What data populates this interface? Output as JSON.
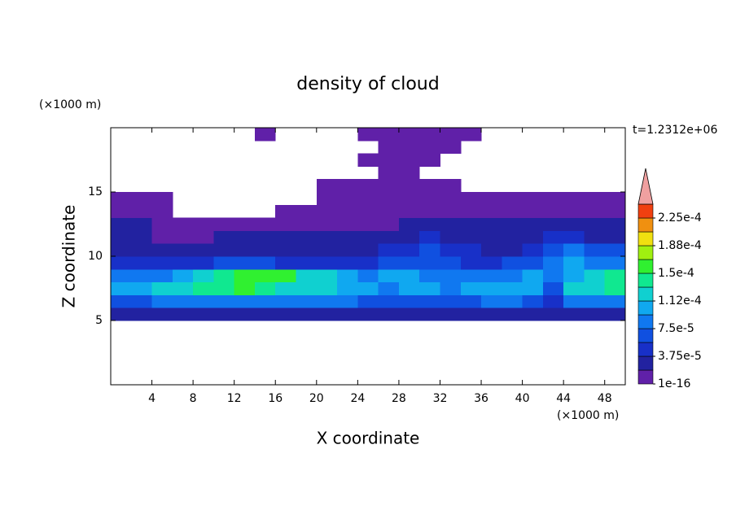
{
  "chart_data": {
    "type": "contour",
    "title": "density of cloud",
    "xlabel": "X coordinate",
    "ylabel": "Z coordinate",
    "xunit": "(×1000 m)",
    "yunit": "(×1000 m)",
    "annotation": "t=1.2312e+06",
    "xlim": [
      0,
      50
    ],
    "ylim": [
      0,
      20
    ],
    "xticks": [
      4,
      8,
      12,
      16,
      20,
      24,
      28,
      32,
      36,
      40,
      44,
      48
    ],
    "yticks": [
      5,
      10,
      15
    ],
    "x": [
      1,
      3,
      5,
      7,
      9,
      11,
      13,
      15,
      17,
      19,
      21,
      23,
      25,
      27,
      29,
      31,
      33,
      35,
      37,
      39,
      41,
      43,
      45,
      47,
      49
    ],
    "y": [
      5.5,
      6.5,
      7.5,
      8.5,
      9.5,
      10.5,
      11.5,
      12.5,
      13.5,
      14.5,
      15.5,
      16.5,
      17.5,
      18.5,
      19.5
    ],
    "values": [
      [
        2.5e-05,
        2.5e-05,
        2.5e-05,
        2.5e-05,
        2.5e-05,
        2.5e-05,
        2.5e-05,
        2.5e-05,
        2.5e-05,
        2.5e-05,
        2.5e-05,
        2.5e-05,
        2.5e-05,
        2.5e-05,
        2.5e-05,
        2.5e-05,
        2.5e-05,
        2.5e-05,
        2.5e-05,
        2.5e-05,
        2.5e-05,
        2.5e-05,
        2.5e-05,
        2.5e-05,
        2.5e-05
      ],
      [
        6e-05,
        7e-05,
        8e-05,
        8e-05,
        8e-05,
        9e-05,
        9e-05,
        9e-05,
        9e-05,
        8e-05,
        8e-05,
        8e-05,
        7e-05,
        6e-05,
        7e-05,
        7e-05,
        6e-05,
        7e-05,
        8e-05,
        8e-05,
        7e-05,
        5e-05,
        8e-05,
        8e-05,
        8e-05
      ],
      [
        0.0001,
        0.00011,
        0.00012,
        0.00013,
        0.00014,
        0.000145,
        0.00015,
        0.00014,
        0.00013,
        0.00012,
        0.00012,
        0.00011,
        0.0001,
        9e-05,
        0.0001,
        0.0001,
        9e-05,
        0.0001,
        0.000105,
        0.00011,
        0.00011,
        7e-05,
        0.00012,
        0.00013,
        0.000135
      ],
      [
        8e-05,
        9e-05,
        9e-05,
        0.0001,
        0.00012,
        0.000145,
        0.00016,
        0.000165,
        0.00015,
        0.00013,
        0.00012,
        0.00011,
        9e-05,
        0.0001,
        0.00011,
        9e-05,
        8e-05,
        8e-05,
        8e-05,
        9e-05,
        0.0001,
        8e-05,
        0.00011,
        0.00013,
        0.00014
      ],
      [
        5e-05,
        5e-05,
        4e-05,
        4e-05,
        5e-05,
        6e-05,
        7e-05,
        6e-05,
        5e-05,
        5e-05,
        5e-05,
        5e-05,
        5e-05,
        6e-05,
        7e-05,
        7e-05,
        6e-05,
        5e-05,
        5e-05,
        6e-05,
        7e-05,
        9e-05,
        0.0001,
        9e-05,
        8e-05
      ],
      [
        3e-05,
        3e-05,
        3e-05,
        2.5e-05,
        2.5e-05,
        3e-05,
        3e-05,
        3e-05,
        3e-05,
        3e-05,
        3e-05,
        3e-05,
        3e-05,
        4e-05,
        5e-05,
        6e-05,
        5e-05,
        4e-05,
        3e-05,
        3e-05,
        4e-05,
        7e-05,
        8e-05,
        7e-05,
        6e-05
      ],
      [
        2e-05,
        2e-05,
        1e-05,
        1e-05,
        1e-05,
        2e-05,
        2e-05,
        2e-05,
        2e-05,
        2e-05,
        2e-05,
        2e-05,
        2e-05,
        2.5e-05,
        3e-05,
        4e-05,
        3e-05,
        2e-05,
        2e-05,
        2e-05,
        2.5e-05,
        4e-05,
        4e-05,
        3e-05,
        3e-05
      ],
      [
        2e-05,
        2e-05,
        1e-05,
        1e-05,
        1e-05,
        1e-05,
        1e-05,
        1e-05,
        1e-05,
        1e-05,
        1e-05,
        1e-05,
        1e-05,
        1e-05,
        2e-05,
        2e-05,
        2e-05,
        2e-05,
        2e-05,
        2e-05,
        2e-05,
        2e-05,
        2e-05,
        2e-05,
        2e-05
      ],
      [
        1e-05,
        1e-05,
        1e-05,
        null,
        null,
        null,
        null,
        null,
        1e-05,
        1e-05,
        1e-05,
        1e-05,
        1e-05,
        1e-05,
        1e-05,
        1e-05,
        1e-05,
        1e-05,
        1e-05,
        1e-05,
        1e-05,
        1e-05,
        1e-05,
        1e-05,
        1e-05
      ],
      [
        1e-05,
        1e-05,
        1e-05,
        null,
        null,
        null,
        null,
        null,
        null,
        null,
        1e-05,
        1e-05,
        1e-05,
        1e-05,
        1e-05,
        1e-05,
        1e-05,
        1e-05,
        1e-05,
        1e-05,
        1e-05,
        1e-05,
        1e-05,
        1e-05,
        1e-05
      ],
      [
        null,
        null,
        null,
        null,
        null,
        null,
        null,
        null,
        null,
        null,
        1e-05,
        1e-05,
        1e-05,
        1e-05,
        1e-05,
        1e-05,
        1e-05,
        null,
        null,
        null,
        null,
        null,
        null,
        null,
        null
      ],
      [
        null,
        null,
        null,
        null,
        null,
        null,
        null,
        null,
        null,
        null,
        null,
        null,
        null,
        1e-05,
        1e-05,
        null,
        null,
        null,
        null,
        null,
        null,
        null,
        null,
        null,
        null
      ],
      [
        null,
        null,
        null,
        null,
        null,
        null,
        null,
        null,
        null,
        null,
        null,
        null,
        1e-05,
        1e-05,
        1e-05,
        1e-05,
        null,
        null,
        null,
        null,
        null,
        null,
        null,
        null,
        null
      ],
      [
        null,
        null,
        null,
        null,
        null,
        null,
        null,
        null,
        null,
        null,
        null,
        null,
        null,
        1e-05,
        1e-05,
        1e-05,
        1e-05,
        null,
        null,
        null,
        null,
        null,
        null,
        null,
        null
      ],
      [
        null,
        null,
        null,
        null,
        null,
        null,
        null,
        1e-05,
        null,
        null,
        null,
        null,
        1e-05,
        1e-05,
        1e-05,
        1e-05,
        1e-05,
        1e-05,
        null,
        null,
        null,
        null,
        null,
        null,
        null
      ]
    ],
    "levels": [
      1e-16,
      1.875e-05,
      3.75e-05,
      5.625e-05,
      7.5e-05,
      9.375e-05,
      0.0001125,
      0.00013125,
      0.00015,
      0.00016875,
      0.0001875,
      0.00020625,
      0.000225,
      0.00024375
    ],
    "colors": [
      "#6020a8",
      "#2222a0",
      "#1830c8",
      "#1050e0",
      "#1078f0",
      "#10a8f0",
      "#10d0d0",
      "#10e890",
      "#30f030",
      "#a0f010",
      "#f0e010",
      "#f09010",
      "#f04010"
    ],
    "extend_color": "#f0a0a0",
    "cbar_ticks": [
      {
        "value": 1e-16,
        "label": "1e-16"
      },
      {
        "value": 3.75e-05,
        "label": "3.75e-5"
      },
      {
        "value": 7.5e-05,
        "label": "7.5e-5"
      },
      {
        "value": 0.0001125,
        "label": "1.12e-4"
      },
      {
        "value": 0.00015,
        "label": "1.5e-4"
      },
      {
        "value": 0.0001875,
        "label": "1.88e-4"
      },
      {
        "value": 0.000225,
        "label": "2.25e-4"
      }
    ]
  }
}
